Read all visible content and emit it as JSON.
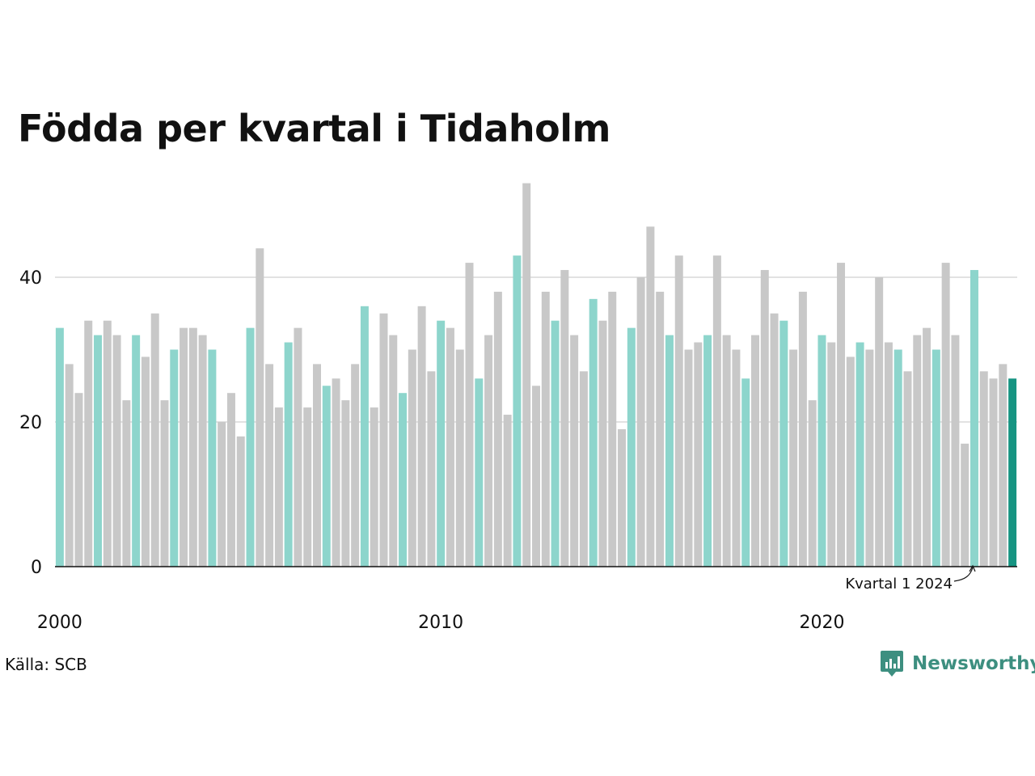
{
  "title": "Födda per kvartal i Tidaholm",
  "source": "Källa: SCB",
  "brand": "Newsworthy",
  "brand_icon": "newsworthy-logo-icon",
  "annotation": "Kvartal 1 2024",
  "colors": {
    "q1": "#8dd5cc",
    "other": "#c8c8c8",
    "latest": "#169482",
    "grid": "#e2e2e2",
    "axis": "#111111",
    "brand": "#3d8f80"
  },
  "chart_data": {
    "type": "bar",
    "title": "Födda per kvartal i Tidaholm",
    "xlabel": "",
    "ylabel": "",
    "ylim": [
      0,
      54
    ],
    "yticks": [
      0,
      20,
      40
    ],
    "grid": true,
    "x_tick_labels": [
      "2000",
      "2010",
      "2020"
    ],
    "first_period": "2000 Q1",
    "last_period": "2024 Q1",
    "highlight": "Q1 bars highlighted; latest quarter (Q1 2024) emphasized",
    "values": [
      33,
      28,
      24,
      34,
      32,
      34,
      32,
      23,
      32,
      29,
      35,
      23,
      30,
      33,
      33,
      32,
      30,
      20,
      24,
      18,
      33,
      44,
      28,
      22,
      31,
      33,
      22,
      28,
      25,
      26,
      23,
      28,
      36,
      22,
      35,
      32,
      24,
      30,
      36,
      27,
      34,
      33,
      30,
      42,
      26,
      32,
      38,
      21,
      43,
      53,
      25,
      38,
      34,
      41,
      32,
      27,
      37,
      34,
      38,
      19,
      33,
      40,
      47,
      38,
      32,
      43,
      30,
      31,
      32,
      43,
      32,
      30,
      26,
      32,
      41,
      35,
      34,
      30,
      38,
      23,
      32,
      31,
      42,
      29,
      31,
      30,
      40,
      31,
      30,
      27,
      32,
      33,
      30,
      42,
      32,
      17,
      41,
      27,
      26,
      28,
      26
    ]
  }
}
